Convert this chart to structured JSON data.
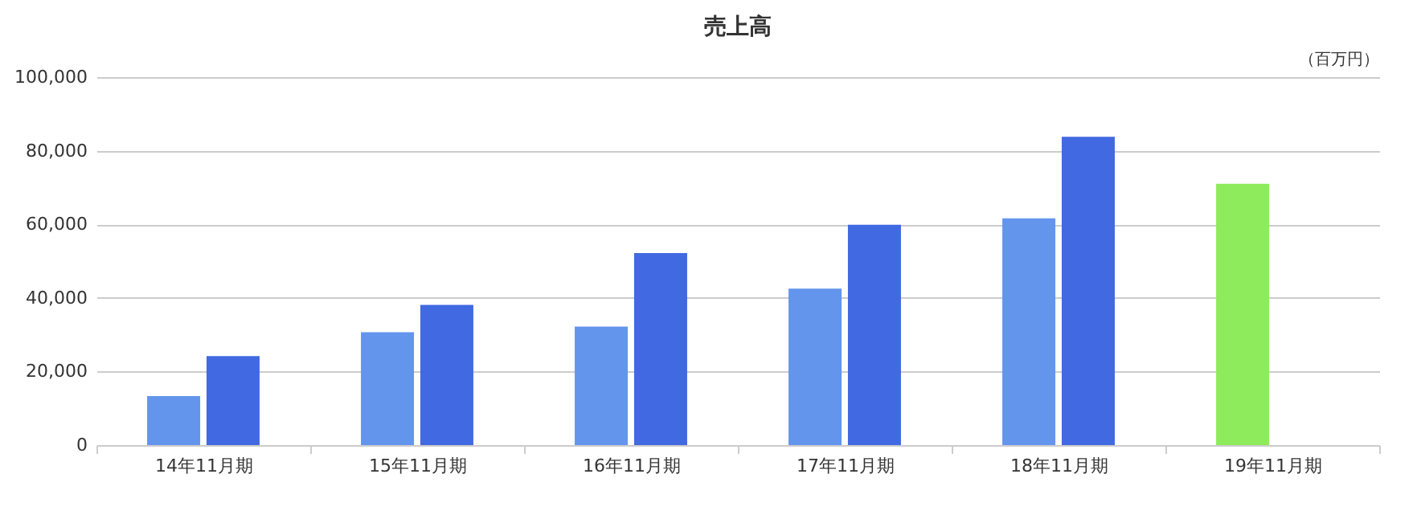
{
  "chart_data": {
    "type": "bar",
    "title": "売上高",
    "annotations": [
      "（百万円）"
    ],
    "categories": [
      "14年11月期",
      "15年11月期",
      "16年11月期",
      "17年11月期",
      "18年11月期",
      "19年11月期"
    ],
    "series": [
      {
        "color": "#6495ed",
        "colors": [
          null,
          null,
          null,
          null,
          null,
          "#8eeb5b"
        ],
        "values": [
          13300,
          30700,
          32200,
          42500,
          61600,
          71000
        ]
      },
      {
        "color": "#4169e1",
        "values": [
          24200,
          38100,
          52200,
          59900,
          83800,
          null
        ]
      }
    ],
    "ylim": [
      0,
      100000
    ],
    "yticks": [
      0,
      {
        "value": 20000,
        "label": "20,000"
      },
      {
        "value": 40000,
        "label": "40,000"
      },
      {
        "value": 60000,
        "label": "60,000"
      },
      {
        "value": 80000,
        "label": "80,000"
      },
      {
        "value": 100000,
        "label": "100,000"
      }
    ],
    "grid": "y"
  }
}
